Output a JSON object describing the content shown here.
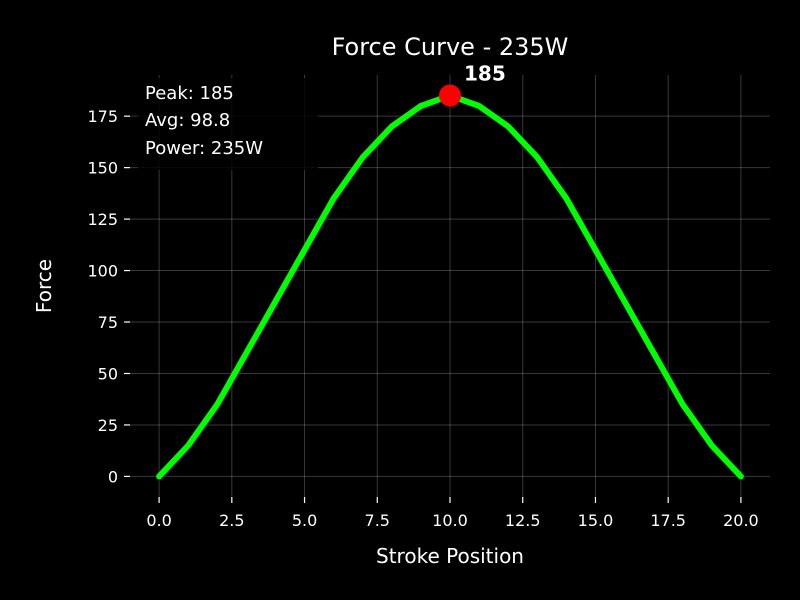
{
  "chart_data": {
    "type": "line",
    "title": "Force Curve - 235W",
    "xlabel": "Stroke Position",
    "ylabel": "Force",
    "xlim": [
      -1,
      21
    ],
    "ylim": [
      -10,
      195
    ],
    "xticks": [
      0,
      2.5,
      5,
      7.5,
      10,
      12.5,
      15,
      17.5,
      20
    ],
    "xtick_labels": [
      "0.0",
      "2.5",
      "5.0",
      "7.5",
      "10.0",
      "12.5",
      "15.0",
      "17.5",
      "20.0"
    ],
    "yticks": [
      0,
      25,
      50,
      75,
      100,
      125,
      150,
      175
    ],
    "ytick_labels": [
      "0",
      "25",
      "50",
      "75",
      "100",
      "125",
      "150",
      "175"
    ],
    "grid": true,
    "series": [
      {
        "color": "#00ff00",
        "x": [
          0,
          1,
          2,
          3,
          4,
          5,
          6,
          7,
          8,
          9,
          10,
          11,
          12,
          13,
          14,
          15,
          16,
          17,
          18,
          19,
          20
        ],
        "y": [
          0,
          15,
          35,
          60,
          85,
          110,
          135,
          155,
          170,
          180,
          185,
          180,
          170,
          155,
          135,
          110,
          85,
          60,
          35,
          15,
          0
        ]
      }
    ],
    "peak": {
      "x": 10,
      "y": 185,
      "label": "185",
      "color": "#ff0000"
    },
    "stats_box": {
      "placement": "top-left",
      "lines": [
        "Peak: 185",
        "Avg: 98.8",
        "Power: 235W"
      ]
    }
  }
}
